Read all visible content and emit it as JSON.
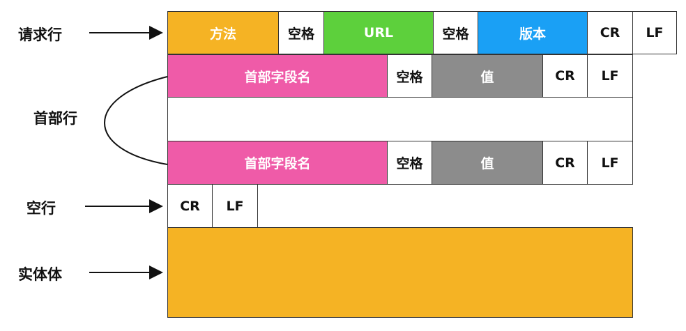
{
  "colors": {
    "method": "#F5B324",
    "url": "#5DD03C",
    "version": "#1AA0F5",
    "header_field": "#EF5BA8",
    "value": "#8C8C8C",
    "body": "#F5B324",
    "plain": "#FFFFFF"
  },
  "labels": {
    "request_line": "请求行",
    "header_lines": "首部行",
    "blank_line": "空行",
    "entity_body": "实体体"
  },
  "request_line": {
    "method": "方法",
    "space1": "空格",
    "url": "URL",
    "space2": "空格",
    "version": "版本",
    "cr": "CR",
    "lf": "LF"
  },
  "header_line_1": {
    "field_name": "首部字段名",
    "space": "空格",
    "value": "值",
    "cr": "CR",
    "lf": "LF"
  },
  "header_line_2": {
    "field_name": "首部字段名",
    "space": "空格",
    "value": "值",
    "cr": "CR",
    "lf": "LF"
  },
  "blank_line": {
    "cr": "CR",
    "lf": "LF"
  }
}
